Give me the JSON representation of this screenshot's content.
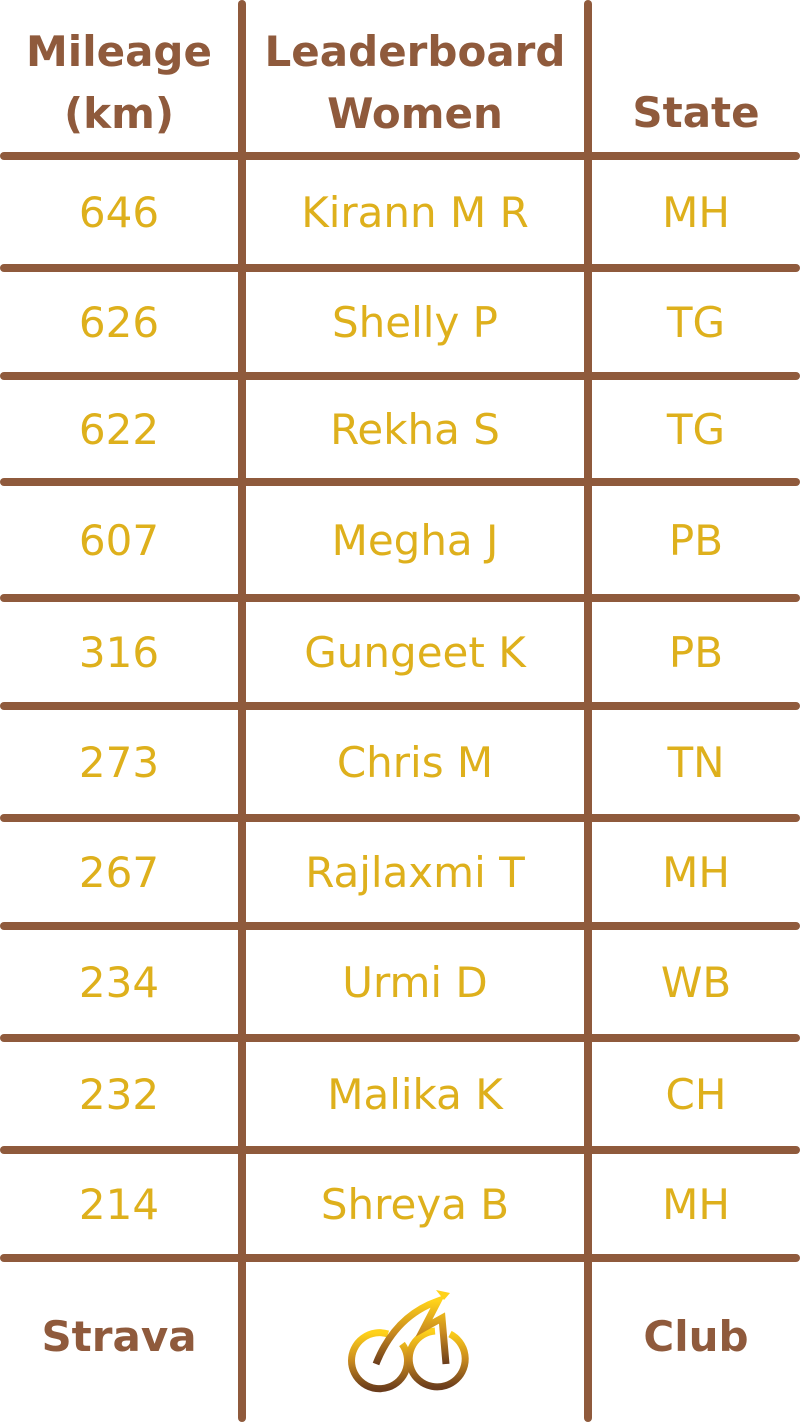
{
  "header": {
    "mileage": "Mileage (km)",
    "leaderboard": "Leaderboard Women",
    "state": "State"
  },
  "rows": [
    {
      "mileage": "646",
      "name": "Kirann M R",
      "state": "MH"
    },
    {
      "mileage": "626",
      "name": "Shelly P",
      "state": "TG"
    },
    {
      "mileage": "622",
      "name": "Rekha S",
      "state": "TG"
    },
    {
      "mileage": "607",
      "name": "Megha J",
      "state": "PB"
    },
    {
      "mileage": "316",
      "name": "Gungeet K",
      "state": "PB"
    },
    {
      "mileage": "273",
      "name": "Chris M",
      "state": "TN"
    },
    {
      "mileage": "267",
      "name": "Rajlaxmi T",
      "state": "MH"
    },
    {
      "mileage": "234",
      "name": "Urmi D",
      "state": "WB"
    },
    {
      "mileage": "232",
      "name": "Malika K",
      "state": "CH"
    },
    {
      "mileage": "214",
      "name": "Shreya B",
      "state": "MH"
    }
  ],
  "footer": {
    "left": "Strava",
    "icon": "bicycle-logo-icon",
    "right": "Club"
  },
  "colors": {
    "brown": "#8f5a3c",
    "gold": "#deb01c"
  }
}
